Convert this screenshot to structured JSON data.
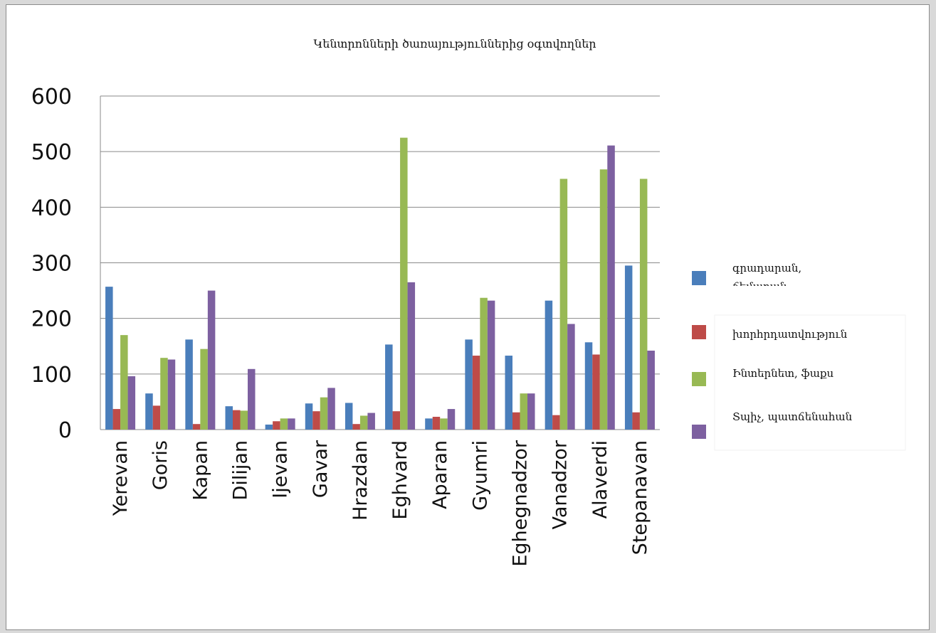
{
  "chart_data": {
    "type": "bar",
    "title": "Կենտրոնների ծառայություններից օգտվողներ",
    "xlabel": "",
    "ylabel": "",
    "ylim": [
      0,
      600
    ],
    "yticks": [
      "0",
      "100",
      "200",
      "300",
      "400",
      "500",
      "600"
    ],
    "grid": true,
    "legend_position": "right",
    "categories": [
      "Yerevan",
      "Goris",
      "Kapan",
      "Dilijan",
      "Ijevan",
      "Gavar",
      "Hrazdan",
      "Eghvard",
      "Aparan",
      "Gyumri",
      "Eghegnadzor",
      "Vanadzor",
      "Alaverdi",
      "Stepanavan"
    ],
    "series": [
      {
        "name": "գրադարան, ճեմարան",
        "color": "#4a7ebb",
        "values": [
          257,
          65,
          162,
          42,
          9,
          47,
          48,
          153,
          20,
          162,
          133,
          232,
          157,
          295
        ]
      },
      {
        "name": "խորհրդատվություն",
        "color": "#be4b48",
        "values": [
          37,
          43,
          10,
          35,
          15,
          33,
          10,
          33,
          23,
          133,
          31,
          26,
          135,
          31
        ]
      },
      {
        "name": "Ինտերնետ, ֆաքս",
        "color": "#98b954",
        "values": [
          170,
          129,
          145,
          34,
          20,
          58,
          25,
          525,
          20,
          237,
          65,
          451,
          468,
          451
        ]
      },
      {
        "name": "Տպիչ, պատճենահան",
        "color": "#7d60a0",
        "values": [
          96,
          126,
          250,
          109,
          20,
          75,
          30,
          265,
          37,
          232,
          65,
          190,
          511,
          142
        ]
      }
    ]
  }
}
